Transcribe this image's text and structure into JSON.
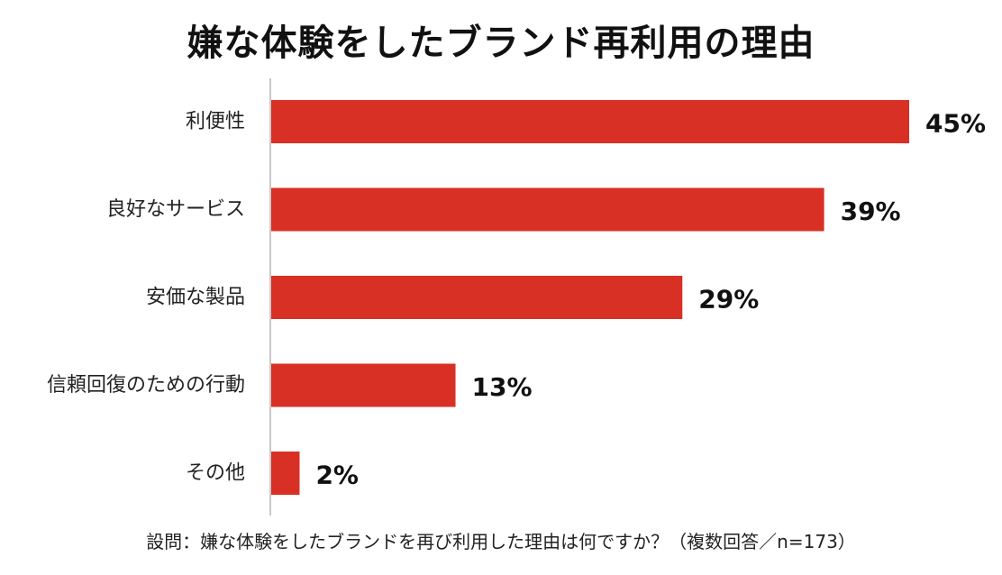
{
  "title": "嫌な体験をしたブランド再利用の理由",
  "footnote": "設問：嫌な体験をしたブランドを再び利用した理由は何ですか？（複数回答／n=173）",
  "colors": {
    "bar": "#d93025",
    "axis": "#c8c8c8"
  },
  "chart_data": {
    "type": "bar",
    "orientation": "horizontal",
    "categories": [
      "利便性",
      "良好なサービス",
      "安価な製品",
      "信頼回復のための行動",
      "その他"
    ],
    "values": [
      45,
      39,
      29,
      13,
      2
    ],
    "value_labels": [
      "45%",
      "39%",
      "29%",
      "13%",
      "2%"
    ],
    "unit": "%",
    "xlim": [
      0,
      45
    ],
    "grid": false,
    "legend": "none"
  }
}
